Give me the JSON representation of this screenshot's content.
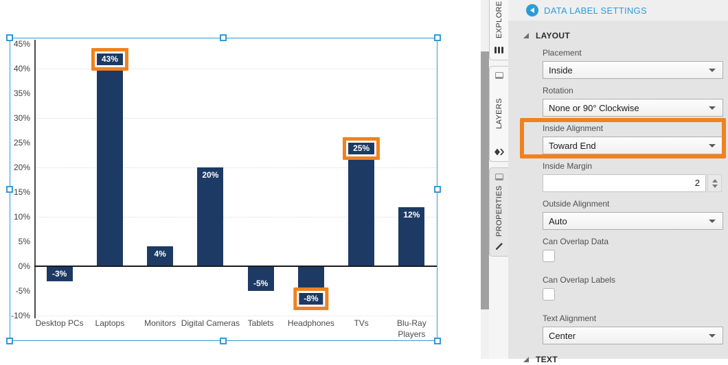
{
  "colors": {
    "bar": "#1d3a64",
    "highlight_orange": "#f0821e",
    "selection_blue": "#2e9ad7",
    "title_blue": "#2d9bd8",
    "data_label_text": "#ffffff"
  },
  "chart_data": {
    "type": "bar",
    "title": "",
    "categories": [
      "Desktop PCs",
      "Laptops",
      "Monitors",
      "Digital Cameras",
      "Tablets",
      "Headphones",
      "TVs",
      "Blu-Ray Players"
    ],
    "values": [
      -3,
      43,
      4,
      20,
      -5,
      -8,
      25,
      12
    ],
    "data_labels": [
      "-3%",
      "43%",
      "4%",
      "20%",
      "-5%",
      "-8%",
      "25%",
      "12%"
    ],
    "highlighted_label_indices": [
      1,
      5,
      6
    ],
    "y_tick_values": [
      45,
      40,
      35,
      30,
      25,
      20,
      15,
      10,
      5,
      0,
      -5,
      -10
    ],
    "y_tick_labels": [
      "45%",
      "40%",
      "35%",
      "30%",
      "25%",
      "20%",
      "15%",
      "10%",
      "5%",
      "0%",
      "-5%",
      "-10%"
    ],
    "gridline_values": [
      40,
      30,
      20,
      10,
      -10
    ],
    "ylim": [
      -10,
      45
    ],
    "grid": "dotted horizontal lines every 10%",
    "legend": "none",
    "xlabel": "",
    "ylabel": ""
  },
  "side_tabs": [
    {
      "label": "EXPLORE",
      "icon": "cylinder-icon",
      "active": false,
      "has_top_icon": false
    },
    {
      "label": "LAYERS",
      "icon": "layers-diamond-icon",
      "active": false,
      "has_top_icon": true
    },
    {
      "label": "PROPERTIES",
      "icon": "pencil-icon",
      "active": true,
      "has_top_icon": true
    }
  ],
  "panel": {
    "title": "DATA LABEL SETTINGS",
    "sections": [
      {
        "title": "LAYOUT",
        "expanded": true,
        "fields": [
          {
            "label": "Placement",
            "type": "dropdown",
            "value": "Inside",
            "highlighted": false
          },
          {
            "label": "Rotation",
            "type": "dropdown",
            "value": "None or 90° Clockwise",
            "highlighted": false
          },
          {
            "label": "Inside Alignment",
            "type": "dropdown",
            "value": "Toward End",
            "highlighted": true
          },
          {
            "label": "Inside Margin",
            "type": "number",
            "value": "2",
            "highlighted": false
          },
          {
            "label": "Outside Alignment",
            "type": "dropdown",
            "value": "Auto",
            "highlighted": false
          },
          {
            "label": "Can Overlap Data",
            "type": "checkbox",
            "checked": false,
            "highlighted": false
          },
          {
            "label": "Can Overlap Labels",
            "type": "checkbox",
            "checked": false,
            "highlighted": false
          },
          {
            "label": "Text Alignment",
            "type": "dropdown",
            "value": "Center",
            "highlighted": false
          }
        ]
      },
      {
        "title": "TEXT",
        "expanded": true,
        "fields": []
      }
    ]
  }
}
